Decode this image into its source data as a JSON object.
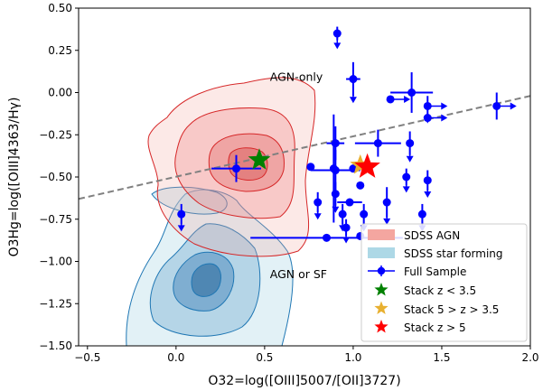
{
  "chart_data": {
    "type": "scatter",
    "xlabel": "O32=log([OIII]5007/[OII]3727)",
    "ylabel": "O3Hg=log([OIII]4363/Hγ)",
    "xlim": [
      -0.55,
      2.0
    ],
    "ylim": [
      -1.5,
      0.5
    ],
    "xticks": [
      "−0.5",
      "0.0",
      "0.5",
      "1.0",
      "1.5",
      "2.0"
    ],
    "xtick_values": [
      -0.5,
      0.0,
      0.5,
      1.0,
      1.5,
      2.0
    ],
    "yticks": [
      "−1.50",
      "−1.25",
      "−1.00",
      "−0.75",
      "−0.50",
      "−0.25",
      "0.00",
      "0.25",
      "0.50"
    ],
    "ytick_values": [
      -1.5,
      -1.25,
      -1.0,
      -0.75,
      -0.5,
      -0.25,
      0.0,
      0.25,
      0.5
    ],
    "grid": false,
    "legend_position": "lower-right",
    "annotations": [
      {
        "text": "AGN-only",
        "x": 0.53,
        "y": 0.07
      },
      {
        "text": "AGN or SF",
        "x": 0.53,
        "y": -1.1
      }
    ],
    "demarcation_line": {
      "style": "dashed",
      "color": "#808080",
      "points": [
        [
          -0.55,
          -0.63
        ],
        [
          2.0,
          -0.02
        ]
      ]
    },
    "series": [
      {
        "name": "SDSS AGN",
        "kind": "contour",
        "color": "#d62728",
        "fill": "#f4a6a0"
      },
      {
        "name": "SDSS star forming",
        "kind": "contour",
        "color": "#1f77b4",
        "fill": "#add8e6"
      },
      {
        "name": "Full Sample",
        "kind": "errorbar",
        "color": "#0000ff",
        "points": [
          {
            "x": 0.91,
            "y": 0.35,
            "xerr": 0.0,
            "yerr": 0.04,
            "upper_limit": true
          },
          {
            "x": 1.0,
            "y": 0.08,
            "xerr": 0.04,
            "yerr": 0.1,
            "upper_limit": true
          },
          {
            "x": 1.33,
            "y": 0.0,
            "xerr": 0.12,
            "yerr": 0.12,
            "upper_limit": false
          },
          {
            "x": 1.42,
            "y": -0.08,
            "xerr": 0.0,
            "yerr": 0.06,
            "upper_limit": true,
            "right_limit": true
          },
          {
            "x": 1.42,
            "y": -0.15,
            "xerr": 0.0,
            "yerr": 0.0,
            "upper_limit": false,
            "right_limit": true
          },
          {
            "x": 1.81,
            "y": -0.08,
            "xerr": 0.0,
            "yerr": 0.08,
            "upper_limit": false,
            "right_limit": true
          },
          {
            "x": 1.21,
            "y": -0.04,
            "xerr": 0.0,
            "yerr": 0.0,
            "upper_limit": false,
            "right_limit": true
          },
          {
            "x": 1.32,
            "y": -0.3,
            "xerr": 0.0,
            "yerr": 0.07,
            "upper_limit": true
          },
          {
            "x": 0.9,
            "y": -0.3,
            "xerr": 0.05,
            "yerr": 0.1,
            "upper_limit": false
          },
          {
            "x": 1.14,
            "y": -0.3,
            "xerr": 0.13,
            "yerr": 0.08,
            "upper_limit": false
          },
          {
            "x": 0.34,
            "y": -0.45,
            "xerr": 0.14,
            "yerr": 0.08,
            "upper_limit": false
          },
          {
            "x": 0.76,
            "y": -0.44,
            "xerr": 0.0,
            "yerr": 0.0,
            "upper_limit": false
          },
          {
            "x": 0.9,
            "y": -0.46,
            "xerr": 0.14,
            "yerr": 0.12,
            "upper_limit": false
          },
          {
            "x": 1.0,
            "y": -0.45,
            "xerr": 0.0,
            "yerr": 0.0,
            "upper_limit": false
          },
          {
            "x": 1.3,
            "y": -0.5,
            "xerr": 0.0,
            "yerr": 0.05,
            "upper_limit": true
          },
          {
            "x": 1.42,
            "y": -0.52,
            "xerr": 0.0,
            "yerr": 0.06,
            "upper_limit": true
          },
          {
            "x": 1.04,
            "y": -0.55,
            "xerr": 0.0,
            "yerr": 0.0,
            "upper_limit": false
          },
          {
            "x": 0.9,
            "y": -0.6,
            "xerr": 0.0,
            "yerr": 0.07,
            "upper_limit": true
          },
          {
            "x": 0.98,
            "y": -0.65,
            "xerr": 0.07,
            "yerr": 0.0,
            "upper_limit": false
          },
          {
            "x": 0.8,
            "y": -0.65,
            "xerr": 0.0,
            "yerr": 0.06,
            "upper_limit": true
          },
          {
            "x": 1.19,
            "y": -0.65,
            "xerr": 0.0,
            "yerr": 0.09,
            "upper_limit": true
          },
          {
            "x": 0.94,
            "y": -0.72,
            "xerr": 0.0,
            "yerr": 0.06,
            "upper_limit": true
          },
          {
            "x": 1.06,
            "y": -0.72,
            "xerr": 0.0,
            "yerr": 0.06,
            "upper_limit": true
          },
          {
            "x": 1.39,
            "y": -0.72,
            "xerr": 0.0,
            "yerr": 0.06,
            "upper_limit": true
          },
          {
            "x": 0.03,
            "y": -0.72,
            "xerr": 0.0,
            "yerr": 0.06,
            "upper_limit": true
          },
          {
            "x": 0.96,
            "y": -0.8,
            "xerr": 0.0,
            "yerr": 0.05,
            "upper_limit": true
          },
          {
            "x": 0.85,
            "y": -0.86,
            "xerr": 0.43,
            "yerr": 0.0,
            "upper_limit": false
          },
          {
            "x": 1.04,
            "y": -0.85,
            "xerr": 0.0,
            "yerr": 0.0,
            "upper_limit": false
          },
          {
            "x": 0.89,
            "y": -0.45,
            "xerr": 0.0,
            "yerr": 0.32,
            "upper_limit": false
          }
        ]
      },
      {
        "name": "Stack z < 3.5",
        "kind": "star",
        "color": "#008000",
        "points": [
          {
            "x": 0.47,
            "y": -0.4
          }
        ]
      },
      {
        "name": "Stack 5 > z > 3.5",
        "kind": "star",
        "color": "#e8b030",
        "points": [
          {
            "x": 1.04,
            "y": -0.43
          }
        ]
      },
      {
        "name": "Stack z > 5",
        "kind": "star",
        "color": "#ff0000",
        "points": [
          {
            "x": 1.08,
            "y": -0.44
          }
        ]
      }
    ]
  }
}
